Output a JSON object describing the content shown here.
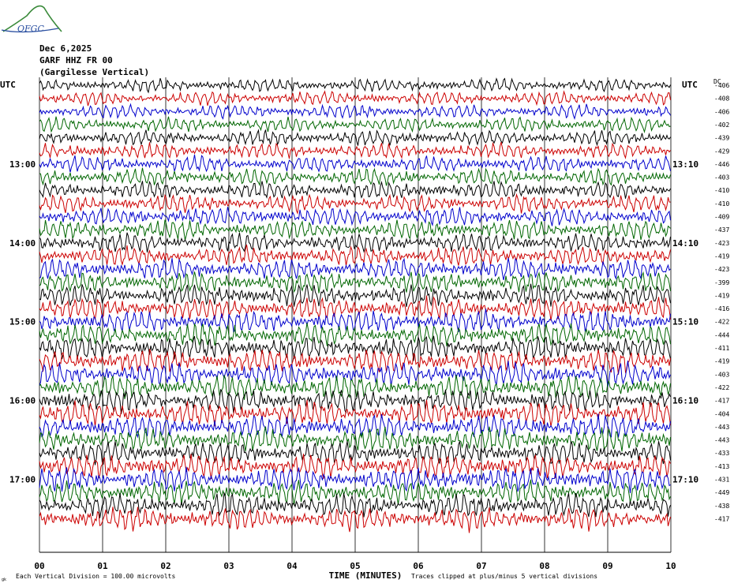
{
  "header": {
    "date": "Dec 6,2025",
    "station": "GARF HHZ FR 00",
    "location": "(Gargilesse Vertical)"
  },
  "logo": {
    "text": "OFGC"
  },
  "chart_data": {
    "type": "line",
    "utc_label_left": "UTC",
    "utc_label_right": "UTC",
    "dc_header": "DC",
    "left_hour_labels": [
      "13:00",
      "14:00",
      "15:00",
      "16:00",
      "17:00"
    ],
    "right_hour_labels": [
      "13:10",
      "14:10",
      "15:10",
      "16:10",
      "17:10"
    ],
    "x_ticks": [
      "00",
      "01",
      "02",
      "03",
      "04",
      "05",
      "06",
      "07",
      "08",
      "09",
      "10"
    ],
    "xlabel": "TIME (MINUTES)",
    "xlim": [
      0,
      10
    ],
    "trace_colors": [
      "#000000",
      "#cc0000",
      "#0000cc",
      "#006600"
    ],
    "dc_offsets": [
      -406,
      -408,
      -406,
      -402,
      -439,
      -429,
      -446,
      -403,
      -410,
      -410,
      -409,
      -437,
      -423,
      -419,
      -423,
      -399,
      -419,
      -416,
      -422,
      -444,
      -411,
      -419,
      -403,
      -422,
      -417,
      -404,
      -443,
      -443,
      -433,
      -413,
      -431,
      -449,
      -438,
      -417
    ],
    "footer_left": "Each Vertical Division =  100.00 microvolts",
    "footer_right": "Traces clipped at plus/minus 5 vertical divisions",
    "footer_left_mark": "gk"
  }
}
